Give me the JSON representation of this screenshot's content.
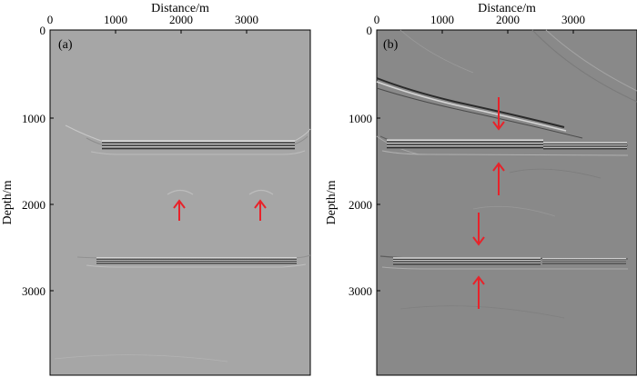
{
  "figure": {
    "panels": [
      {
        "label": "(a)",
        "xlabel": "Distance/m",
        "ylabel": "Depth/m",
        "xticks": [
          "0",
          "1000",
          "2000",
          "3000"
        ],
        "yticks": [
          "0",
          "1000",
          "2000",
          "3000"
        ],
        "background": "#a6a6a6"
      },
      {
        "label": "(b)",
        "xlabel": "Distance/m",
        "ylabel": "Depth/m",
        "xticks": [
          "0",
          "1000",
          "2000",
          "3000"
        ],
        "yticks": [
          "0",
          "1000",
          "2000",
          "3000"
        ],
        "background": "#898989"
      }
    ],
    "arrow_color": "#e8222a"
  }
}
